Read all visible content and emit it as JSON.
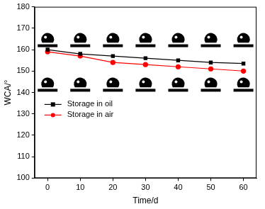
{
  "chart_data": {
    "type": "line",
    "x_label": "Time/d",
    "y_label": "WCA/°",
    "x": [
      0,
      10,
      20,
      30,
      40,
      50,
      60
    ],
    "series": [
      {
        "name": "Storage in oil",
        "color": "#000000",
        "marker": "square",
        "line_style": "solid",
        "values": [
          160,
          158,
          157,
          156,
          155,
          154,
          153.5
        ]
      },
      {
        "name": "Storage in air",
        "color": "#ff0000",
        "marker": "circle",
        "line_style": "solid",
        "values": [
          159,
          157,
          154,
          153,
          152,
          151,
          150
        ]
      }
    ],
    "xlim": [
      -4,
      64
    ],
    "xticks": [
      0,
      10,
      20,
      30,
      40,
      50,
      60
    ],
    "ylim": [
      100,
      180
    ],
    "yticks": [
      100,
      110,
      120,
      130,
      140,
      150,
      160,
      170,
      180
    ],
    "grid": false,
    "legend": "lower left"
  }
}
